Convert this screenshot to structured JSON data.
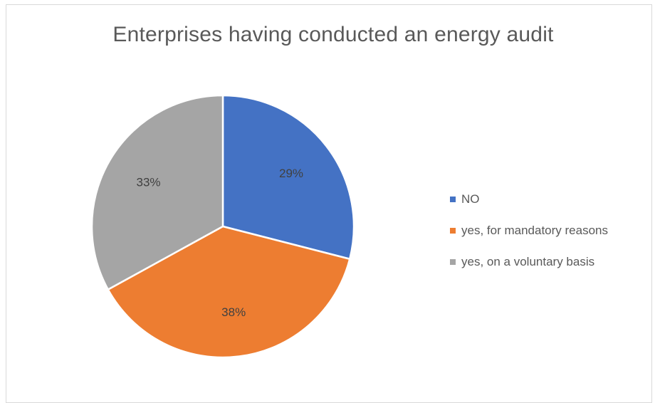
{
  "chart_data": {
    "type": "pie",
    "title": "Enterprises having conducted an energy audit",
    "categories": [
      "NO",
      "yes, for mandatory reasons",
      "yes, on a voluntary basis"
    ],
    "values": [
      29,
      38,
      33
    ],
    "labels": [
      "29%",
      "38%",
      "33%"
    ],
    "colors": [
      "#4472c4",
      "#ed7d31",
      "#a5a5a5"
    ],
    "legend_position": "right",
    "start_angle": "12 o'clock, clockwise"
  }
}
